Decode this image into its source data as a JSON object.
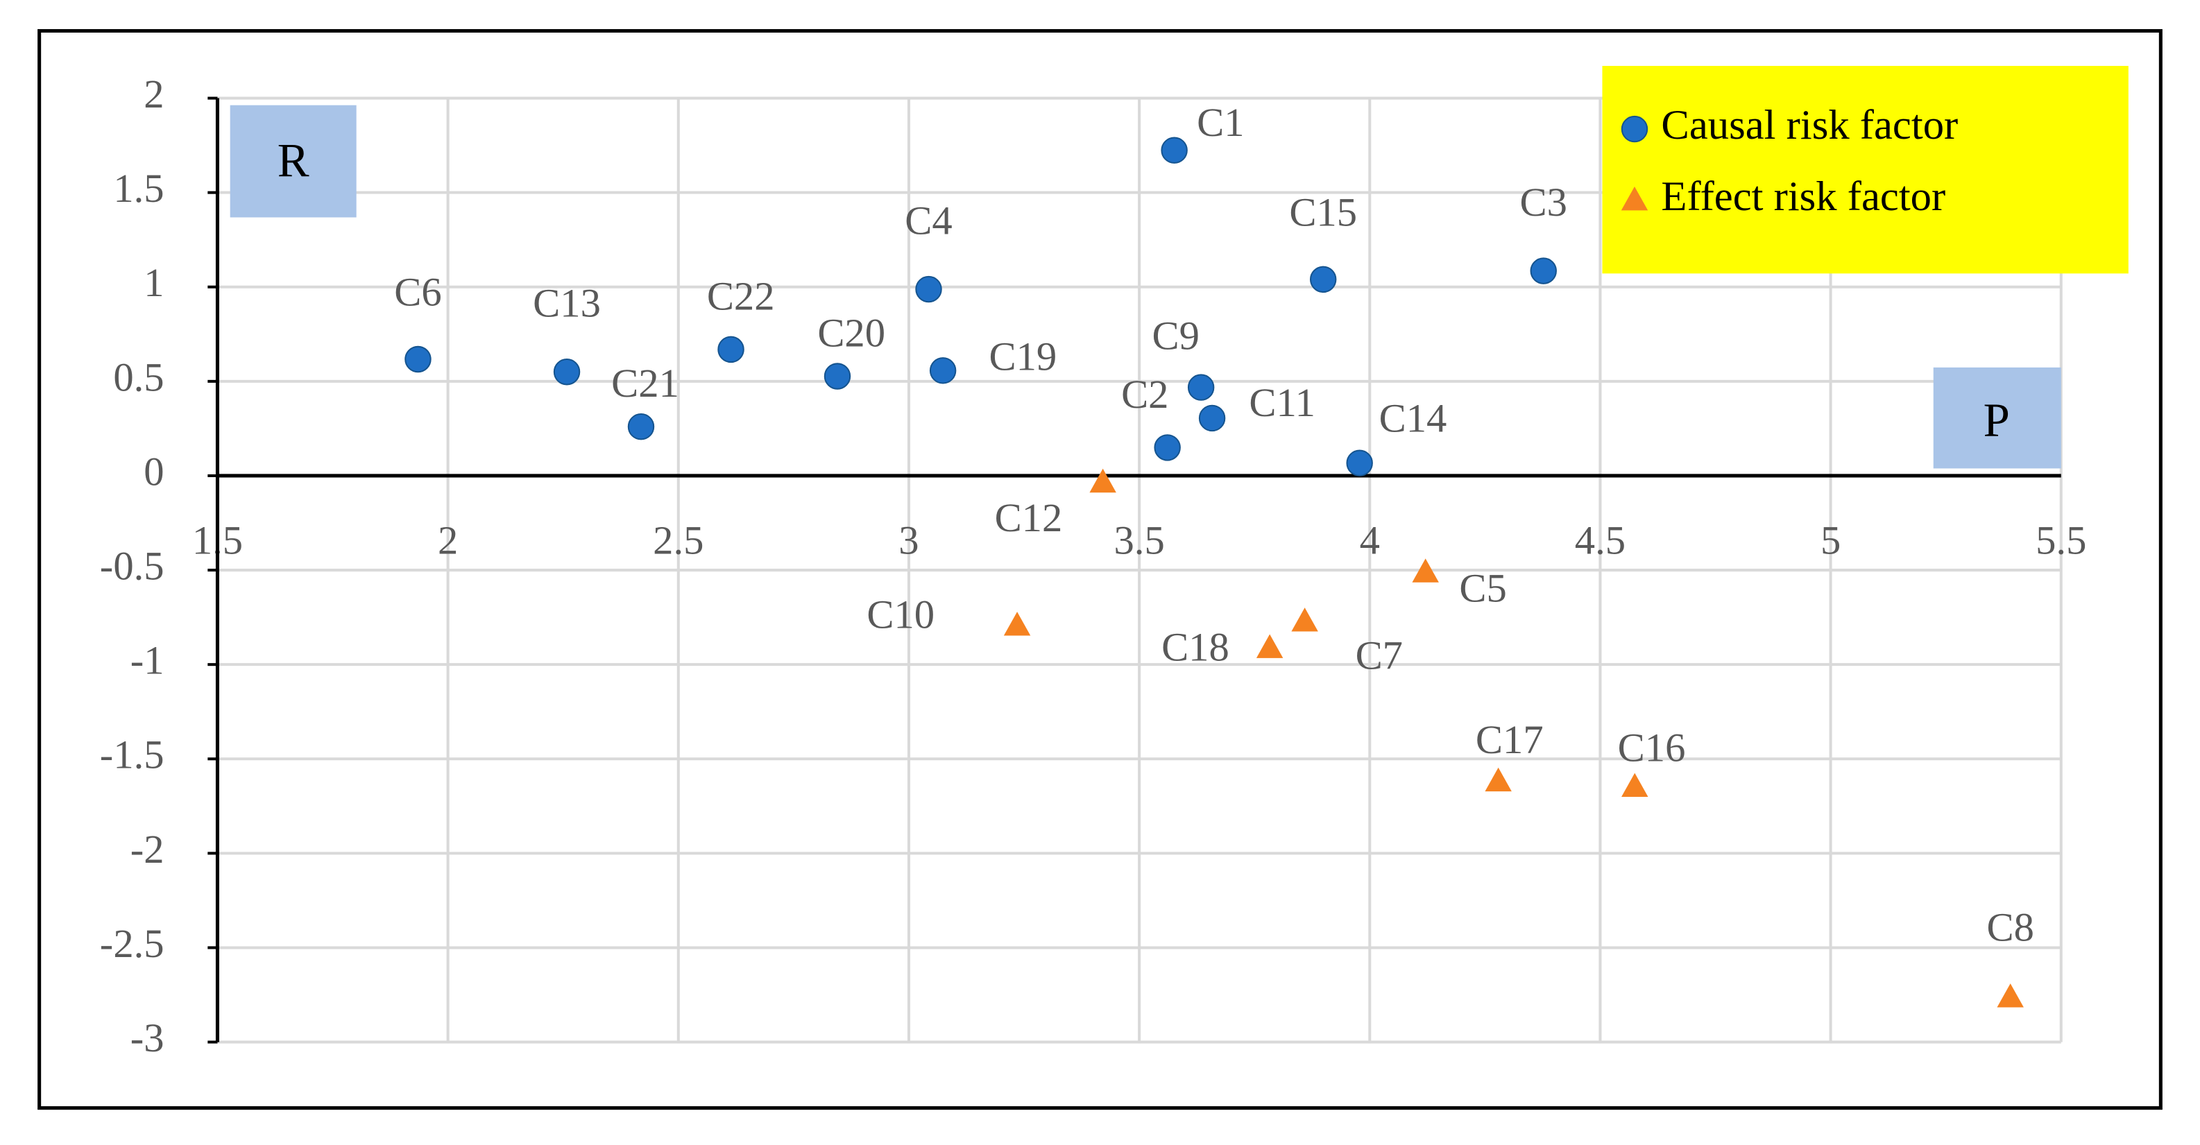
{
  "chart_data": {
    "type": "scatter",
    "xlim": [
      1.5,
      5.5
    ],
    "xticks": [
      1.5,
      2,
      2.5,
      3,
      3.5,
      4,
      4.5,
      5,
      5.5
    ],
    "ylim": [
      -3,
      2
    ],
    "yticks": [
      2,
      1.5,
      1,
      0.5,
      0,
      -0.5,
      -1,
      -1.5,
      -2,
      -2.5,
      -3
    ],
    "grid": true,
    "legend": "upper right",
    "annotations": [
      "R",
      "P"
    ],
    "series": [
      {
        "name": "Causal risk factor",
        "color": "#1f6fc5",
        "marker": "circle",
        "labels": [
          "C6",
          "C13",
          "C21",
          "C22",
          "C20",
          "C4",
          "C19",
          "C1",
          "C9",
          "C2",
          "C11",
          "C15",
          "C14",
          "C3"
        ],
        "x": [
          1.935,
          2.258,
          2.419,
          2.614,
          2.845,
          3.043,
          3.074,
          3.576,
          3.634,
          3.561,
          3.658,
          3.899,
          3.978,
          4.377
        ],
        "y": [
          0.617,
          0.55,
          0.26,
          0.669,
          0.527,
          0.988,
          0.557,
          1.724,
          0.468,
          0.149,
          0.305,
          1.04,
          0.067,
          1.085
        ]
      },
      {
        "name": "Effect risk factor",
        "color": "#f58220",
        "marker": "triangle",
        "labels": [
          "C12",
          "C10",
          "C18",
          "C7",
          "C5",
          "C17",
          "C16",
          "C8"
        ],
        "x": [
          3.421,
          3.235,
          3.783,
          3.859,
          4.121,
          4.279,
          4.575,
          5.39
        ],
        "y": [
          -0.037,
          -0.795,
          -0.914,
          -0.773,
          -0.513,
          -1.62,
          -1.649,
          -2.764
        ]
      }
    ]
  }
}
